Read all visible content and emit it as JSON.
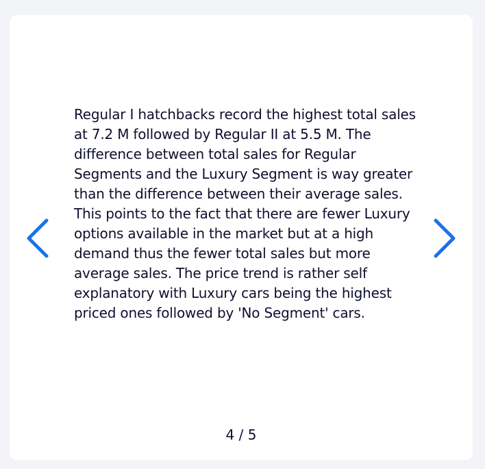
{
  "carousel": {
    "slide_text": "Regular I hatchbacks record the highest total sales at 7.2 M followed by Regular II at 5.5 M. The difference between total sales for Regular Segments and the Luxury Segment is way greater than the difference between their average sales. This points to the fact that there are fewer Luxury options available in the market but at a high demand thus the fewer total sales but more average sales. The price trend is rather self explanatory with Luxury cars being the highest priced ones followed by 'No Segment' cars.",
    "counter": "4 / 5",
    "prev_icon": "chevron-left-icon",
    "next_icon": "chevron-right-icon",
    "accent_color": "#1a73e8"
  }
}
